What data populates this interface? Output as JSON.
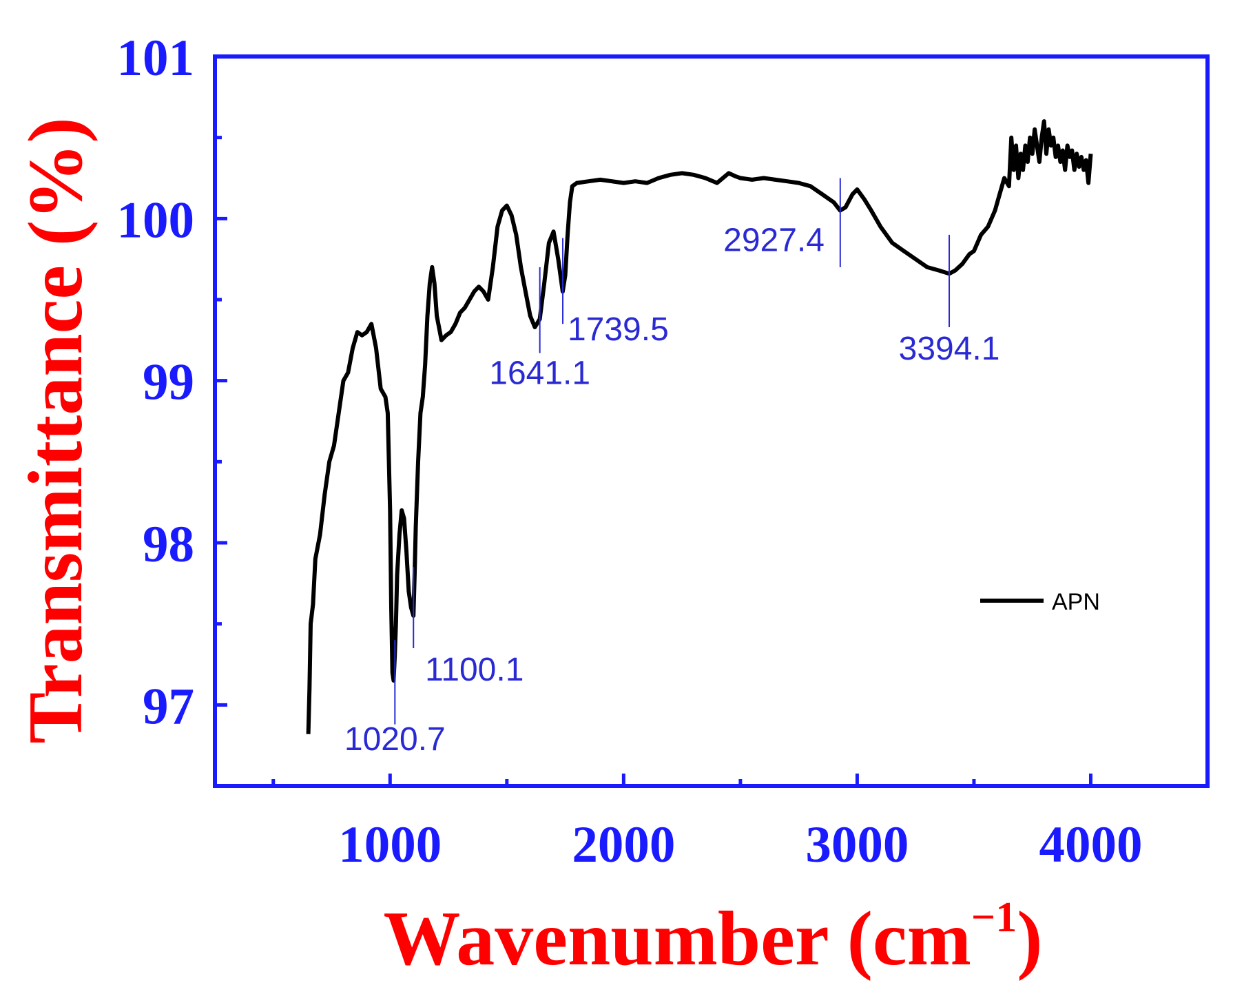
{
  "colors": {
    "axis": "#1a1aff",
    "tick_label": "#1a1aff",
    "axis_title": "#ff0000",
    "series": "#000000",
    "annotation": "#2a2ad4"
  },
  "chart_data": {
    "type": "line",
    "xlabel": "Wavenumber (cm",
    "xlabel_superscript": "−1",
    "xlabel_close": ")",
    "ylabel": "Transmittance (%)",
    "xlim": [
      250,
      4500
    ],
    "ylim": [
      96.5,
      101
    ],
    "xticks": [
      1000,
      2000,
      3000,
      4000
    ],
    "xtick_labels": [
      "1000",
      "2000",
      "3000",
      "4000"
    ],
    "yticks": [
      97,
      98,
      99,
      100,
      101
    ],
    "ytick_labels": [
      "97",
      "98",
      "99",
      "100",
      "101"
    ],
    "grid": false,
    "legend": {
      "position": "right",
      "entries": [
        "APN"
      ]
    },
    "series": [
      {
        "name": "APN",
        "x": [
          650,
          655,
          660,
          670,
          680,
          700,
          720,
          740,
          760,
          780,
          800,
          820,
          840,
          860,
          880,
          900,
          920,
          940,
          960,
          980,
          990,
          1000,
          1005,
          1010,
          1015,
          1020,
          1025,
          1030,
          1040,
          1050,
          1060,
          1070,
          1080,
          1090,
          1100,
          1105,
          1110,
          1120,
          1130,
          1140,
          1150,
          1160,
          1170,
          1180,
          1190,
          1200,
          1220,
          1240,
          1260,
          1280,
          1300,
          1320,
          1340,
          1360,
          1380,
          1400,
          1420,
          1440,
          1460,
          1480,
          1500,
          1520,
          1540,
          1560,
          1580,
          1600,
          1620,
          1641,
          1660,
          1680,
          1700,
          1720,
          1739,
          1750,
          1760,
          1770,
          1780,
          1800,
          1850,
          1900,
          1950,
          2000,
          2050,
          2100,
          2150,
          2200,
          2250,
          2300,
          2350,
          2400,
          2450,
          2480,
          2500,
          2550,
          2600,
          2650,
          2700,
          2750,
          2800,
          2850,
          2900,
          2927,
          2950,
          2980,
          3000,
          3030,
          3060,
          3100,
          3150,
          3200,
          3250,
          3300,
          3350,
          3394,
          3420,
          3450,
          3480,
          3500,
          3530,
          3560,
          3590,
          3610,
          3630,
          3650,
          3660,
          3670,
          3680,
          3690,
          3700,
          3710,
          3720,
          3730,
          3740,
          3750,
          3760,
          3770,
          3780,
          3790,
          3800,
          3810,
          3820,
          3830,
          3840,
          3850,
          3860,
          3870,
          3880,
          3890,
          3900,
          3910,
          3920,
          3930,
          3940,
          3950,
          3960,
          3970,
          3980,
          3990,
          4000
        ],
        "values": [
          96.82,
          97.1,
          97.5,
          97.62,
          97.9,
          98.05,
          98.3,
          98.5,
          98.6,
          98.8,
          99.0,
          99.05,
          99.2,
          99.3,
          99.28,
          99.3,
          99.35,
          99.2,
          98.95,
          98.9,
          98.8,
          98.2,
          97.6,
          97.2,
          97.15,
          97.3,
          97.5,
          97.8,
          98.05,
          98.2,
          98.15,
          97.95,
          97.7,
          97.6,
          97.55,
          97.8,
          98.1,
          98.5,
          98.8,
          98.9,
          99.1,
          99.4,
          99.6,
          99.7,
          99.6,
          99.4,
          99.25,
          99.28,
          99.3,
          99.35,
          99.42,
          99.45,
          99.5,
          99.55,
          99.58,
          99.55,
          99.5,
          99.7,
          99.95,
          100.05,
          100.08,
          100.02,
          99.9,
          99.7,
          99.55,
          99.4,
          99.33,
          99.38,
          99.6,
          99.85,
          99.92,
          99.75,
          99.55,
          99.65,
          99.9,
          100.1,
          100.2,
          100.22,
          100.23,
          100.24,
          100.23,
          100.22,
          100.23,
          100.22,
          100.25,
          100.27,
          100.28,
          100.27,
          100.25,
          100.22,
          100.28,
          100.26,
          100.25,
          100.24,
          100.25,
          100.24,
          100.23,
          100.22,
          100.2,
          100.15,
          100.1,
          100.05,
          100.07,
          100.15,
          100.18,
          100.12,
          100.05,
          99.95,
          99.85,
          99.8,
          99.75,
          99.7,
          99.68,
          99.66,
          99.68,
          99.72,
          99.78,
          99.8,
          99.9,
          99.95,
          100.05,
          100.15,
          100.25,
          100.2,
          100.5,
          100.3,
          100.45,
          100.25,
          100.4,
          100.3,
          100.45,
          100.35,
          100.5,
          100.4,
          100.55,
          100.45,
          100.35,
          100.5,
          100.6,
          100.4,
          100.55,
          100.45,
          100.5,
          100.38,
          100.45,
          100.35,
          100.42,
          100.3,
          100.45,
          100.38,
          100.42,
          100.3,
          100.4,
          100.32,
          100.38,
          100.3,
          100.36,
          100.22,
          100.4
        ]
      }
    ],
    "annotations": [
      {
        "label": "1020.7",
        "x": 1020.7,
        "y_from": 97.4,
        "y_to": 96.88,
        "text_x": 1020.7,
        "text_y": 96.72,
        "anchor": "middle"
      },
      {
        "label": "1100.1",
        "x": 1100.1,
        "y_from": 97.85,
        "y_to": 97.35,
        "text_x": 1150,
        "text_y": 97.15,
        "anchor": "start"
      },
      {
        "label": "1641.1",
        "x": 1641.1,
        "y_from": 99.7,
        "y_to": 99.17,
        "text_x": 1641.1,
        "text_y": 98.98,
        "anchor": "middle"
      },
      {
        "label": "1739.5",
        "x": 1739.5,
        "y_from": 99.88,
        "y_to": 99.35,
        "text_x": 1760,
        "text_y": 99.25,
        "anchor": "start"
      },
      {
        "label": "2927.4",
        "x": 2927.4,
        "y_from": 100.25,
        "y_to": 99.7,
        "text_x": 2860,
        "text_y": 99.8,
        "anchor": "end"
      },
      {
        "label": "3394.1",
        "x": 3394.1,
        "y_from": 99.9,
        "y_to": 99.33,
        "text_x": 3394.1,
        "text_y": 99.13,
        "anchor": "middle"
      }
    ]
  }
}
